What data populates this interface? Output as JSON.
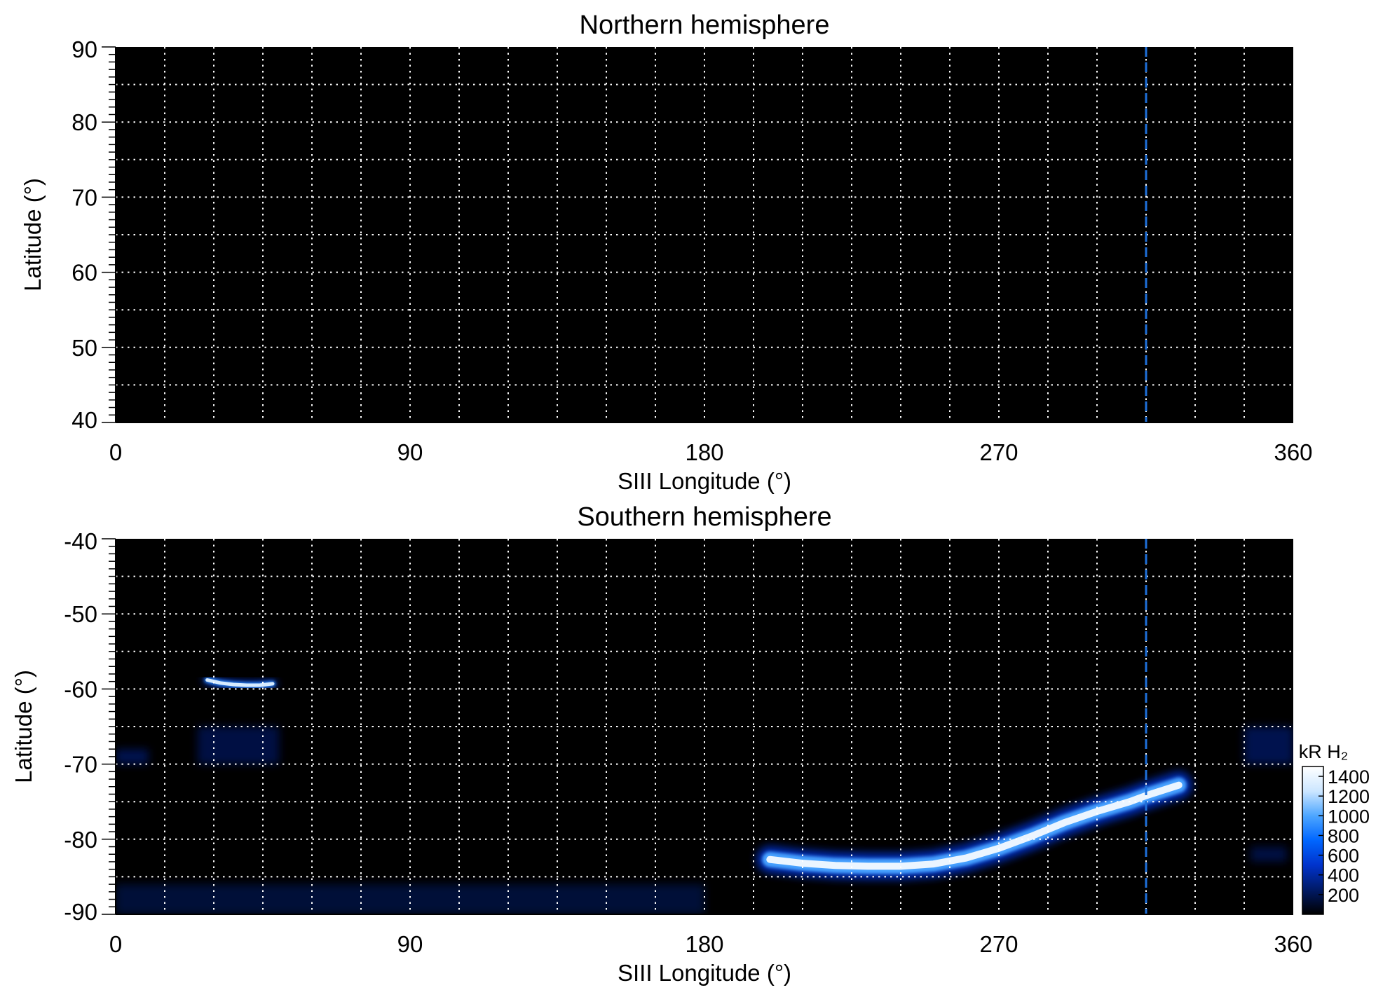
{
  "chart_data": [
    {
      "type": "heatmap",
      "title": "Northern hemisphere",
      "xlabel": "SIII Longitude (°)",
      "ylabel": "Latitude (°)",
      "xlim": [
        0,
        360
      ],
      "ylim": [
        40,
        90
      ],
      "xticks": [
        0,
        90,
        180,
        270,
        360
      ],
      "yticks": [
        40,
        50,
        60,
        70,
        80,
        90
      ],
      "grid": {
        "x_step": 15,
        "y_step": 5,
        "style": "dotted",
        "color": "#ffffff"
      },
      "reference_line": {
        "x": 315,
        "color": "#1e6fd9",
        "style": "dashed"
      },
      "emission_features": []
    },
    {
      "type": "heatmap",
      "title": "Southern hemisphere",
      "xlabel": "SIII Longitude (°)",
      "ylabel": "Latitude (°)",
      "xlim": [
        0,
        360
      ],
      "ylim": [
        -90,
        -40
      ],
      "xticks": [
        0,
        90,
        180,
        270,
        360
      ],
      "yticks": [
        -90,
        -80,
        -70,
        -60,
        -50,
        -40
      ],
      "grid": {
        "x_step": 15,
        "y_step": 5,
        "style": "dotted",
        "color": "#ffffff"
      },
      "reference_line": {
        "x": 315,
        "color": "#1e6fd9",
        "style": "dashed"
      },
      "emission_features": [
        {
          "kind": "main_oval_arc",
          "intensity": 1400,
          "lon": [
            200,
            210,
            220,
            230,
            240,
            250,
            260,
            270,
            280,
            290,
            300,
            310,
            315,
            320,
            325
          ],
          "lat": [
            -82.7,
            -83.2,
            -83.5,
            -83.6,
            -83.6,
            -83.3,
            -82.5,
            -81.2,
            -79.6,
            -77.8,
            -76.3,
            -75.0,
            -74.2,
            -73.5,
            -72.8
          ]
        },
        {
          "kind": "spot",
          "intensity": 1300,
          "lon": [
            28,
            32,
            36,
            40,
            44,
            48
          ],
          "lat": [
            -58.8,
            -59.2,
            -59.4,
            -59.5,
            -59.5,
            -59.3
          ]
        },
        {
          "kind": "diffuse",
          "intensity": 300,
          "lon_range": [
            25,
            50
          ],
          "lat_range": [
            -70,
            -65
          ]
        },
        {
          "kind": "diffuse",
          "intensity": 350,
          "lon_range": [
            0,
            10
          ],
          "lat_range": [
            -70,
            -68
          ]
        },
        {
          "kind": "diffuse",
          "intensity": 250,
          "lon_range": [
            0,
            180
          ],
          "lat_range": [
            -90,
            -86
          ]
        },
        {
          "kind": "diffuse",
          "intensity": 350,
          "lon_range": [
            345,
            360
          ],
          "lat_range": [
            -70,
            -65
          ]
        },
        {
          "kind": "diffuse",
          "intensity": 300,
          "lon_range": [
            347,
            358
          ],
          "lat_range": [
            -83,
            -81
          ]
        }
      ],
      "colorbar": {
        "label": "kR H₂",
        "ticks": [
          200,
          400,
          600,
          800,
          1000,
          1200,
          1400
        ],
        "range": [
          0,
          1500
        ],
        "colors": [
          "#000000",
          "#001a66",
          "#0033cc",
          "#0066ff",
          "#4da6ff",
          "#cce6ff",
          "#ffffff"
        ]
      }
    }
  ]
}
